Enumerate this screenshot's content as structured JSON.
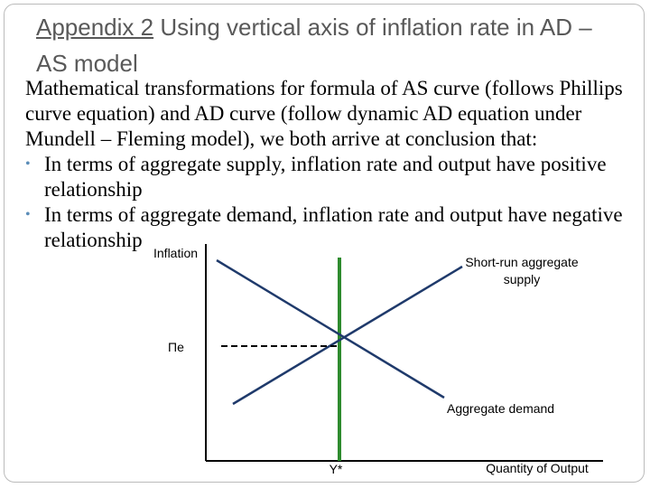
{
  "title": {
    "label": "Appendix 2",
    "text": "Using vertical axis of inflation rate in AD – AS model"
  },
  "body": {
    "intro": "Mathematical transformations for formula of AS curve (follows Phillips curve equation) and AD curve (follow dynamic AD equation  under Mundell – Fleming model), we both arrive at conclusion that:",
    "bullets": [
      "In terms of aggregate supply, inflation rate and output have positive relationship",
      "In terms of aggregate demand, inflation rate and output have negative relationship"
    ]
  },
  "diagram": {
    "y_axis_label": "Inflation",
    "x_axis_label": "Quantity of Output",
    "supply_label": "Short-run aggregate supply",
    "demand_label": "Aggregate demand",
    "expected_inflation_label": "Πe",
    "potential_output_label": "Y*"
  }
}
